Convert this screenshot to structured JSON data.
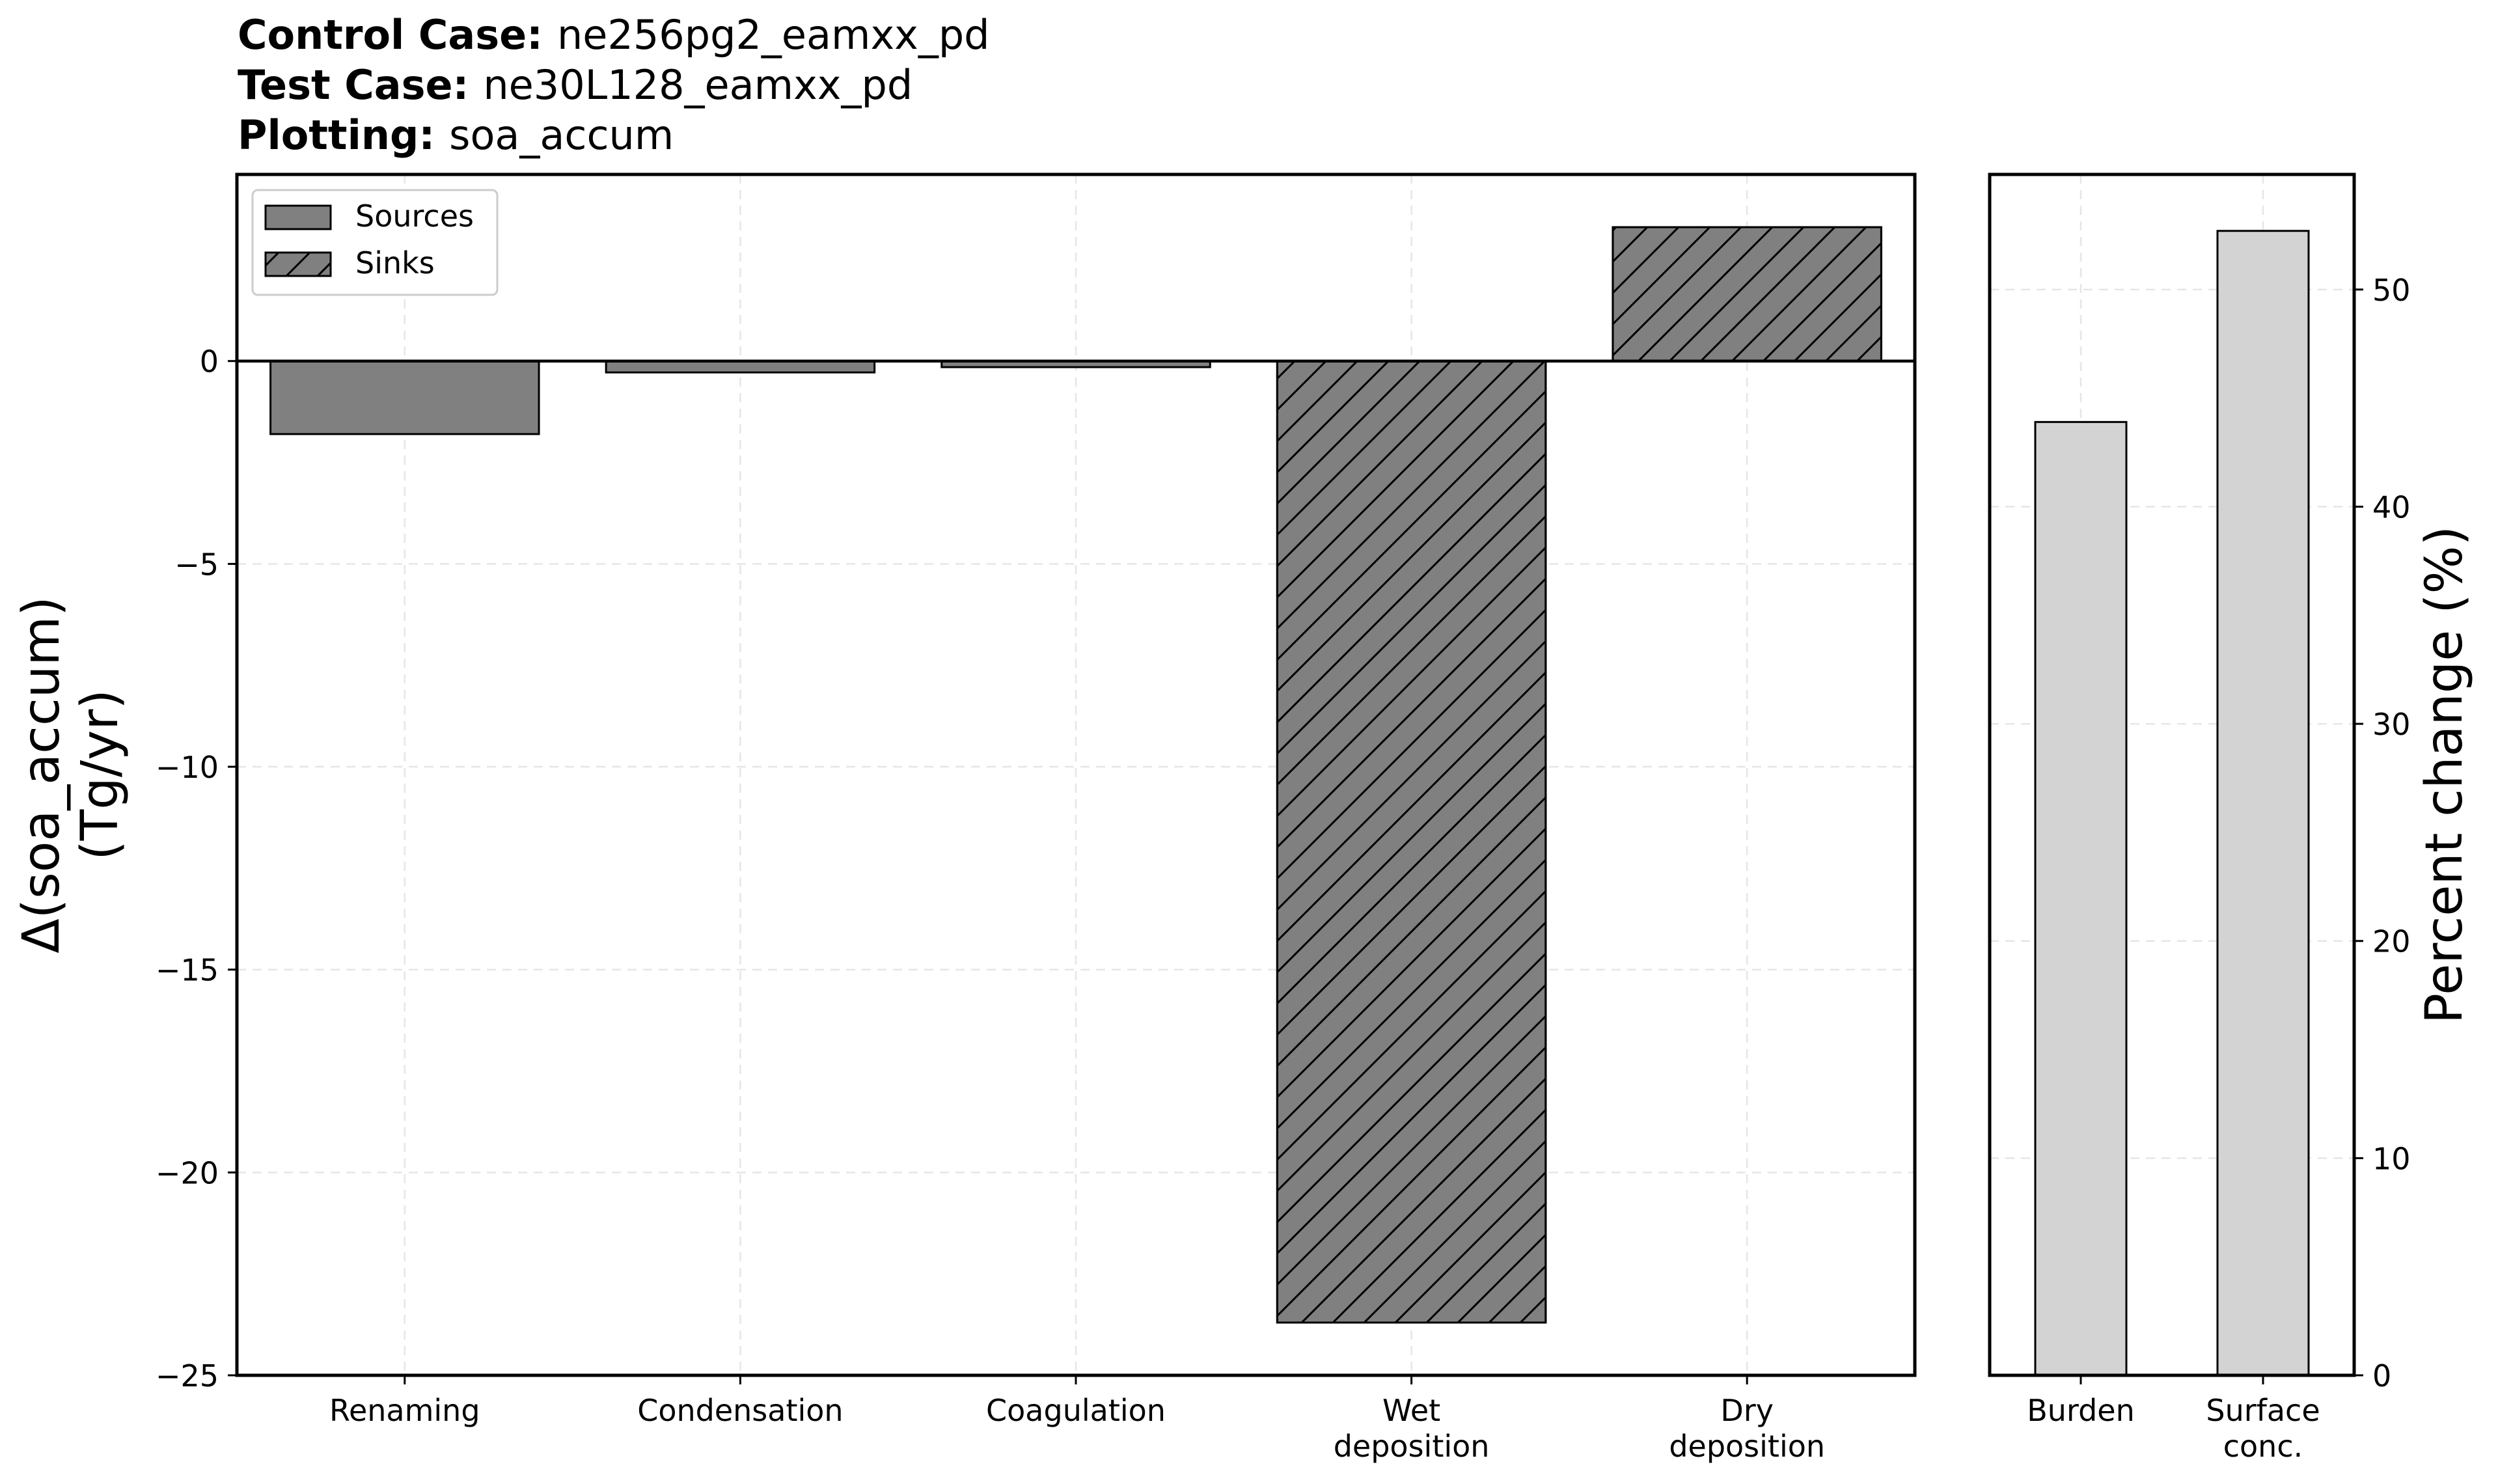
{
  "header": {
    "control_label": "Control Case",
    "control_value": "ne256pg2_eamxx_pd",
    "test_label": "Test Case",
    "test_value": "ne30L128_eamxx_pd",
    "plotting_label": "Plotting",
    "plotting_value": "soa_accum"
  },
  "colors": {
    "process_bar": "#808080",
    "percent_bar": "#d3d3d3",
    "grid": "#e6e6e6"
  },
  "chart_data": [
    {
      "type": "bar",
      "title": "",
      "xlabel": "",
      "ylabel": [
        "Δ(soa_accum)",
        "(Tg/yr)"
      ],
      "ylim": [
        -25,
        4.6
      ],
      "yticks": [
        0,
        -5,
        -10,
        -15,
        -20,
        -25
      ],
      "ytick_labels": [
        "0",
        "−5",
        "−10",
        "−15",
        "−20",
        "−25"
      ],
      "grid": true,
      "legend": {
        "placement": "top-left",
        "entries": [
          {
            "label": "Sources",
            "hatch": false
          },
          {
            "label": "Sinks",
            "hatch": true
          }
        ]
      },
      "categories": [
        {
          "label": [
            "Renaming"
          ],
          "value": -1.8,
          "kind": "Sources"
        },
        {
          "label": [
            "Condensation"
          ],
          "value": -0.28,
          "kind": "Sources"
        },
        {
          "label": [
            "Coagulation"
          ],
          "value": -0.15,
          "kind": "Sources"
        },
        {
          "label": [
            "Wet",
            "deposition"
          ],
          "value": -23.7,
          "kind": "Sinks"
        },
        {
          "label": [
            "Dry",
            "deposition"
          ],
          "value": 3.3,
          "kind": "Sinks"
        }
      ]
    },
    {
      "type": "bar",
      "title": "",
      "ylabel": "Percent change (%)",
      "yaxis_side": "right",
      "ylim": [
        0,
        55.3
      ],
      "yticks": [
        0,
        10,
        20,
        30,
        40,
        50
      ],
      "grid": true,
      "categories": [
        {
          "label": [
            "Burden"
          ],
          "value": 43.9
        },
        {
          "label": [
            "Surface",
            "conc."
          ],
          "value": 52.7
        }
      ]
    }
  ]
}
